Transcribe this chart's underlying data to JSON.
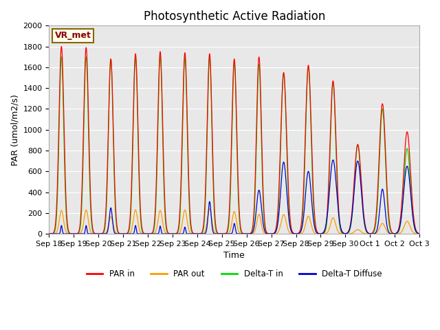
{
  "title": "Photosynthetic Active Radiation",
  "ylabel": "PAR (umol/m2/s)",
  "xlabel": "Time",
  "ylim": [
    0,
    2000
  ],
  "yticks": [
    0,
    200,
    400,
    600,
    800,
    1000,
    1200,
    1400,
    1600,
    1800,
    2000
  ],
  "background_color": "#e8e8e8",
  "annotation_text": "VR_met",
  "annotation_bg": "#ffffee",
  "annotation_border": "#886600",
  "colors": {
    "PAR_in": "#ff0000",
    "PAR_out": "#ff9900",
    "Delta_T_in": "#00dd00",
    "Delta_T_diffuse": "#0000cc"
  },
  "legend_labels": [
    "PAR in",
    "PAR out",
    "Delta-T in",
    "Delta-T Diffuse"
  ],
  "title_fontsize": 12,
  "axis_fontsize": 9,
  "tick_fontsize": 8,
  "days": 15,
  "par_in_peaks": [
    1800,
    1790,
    1680,
    1730,
    1750,
    1740,
    1730,
    1680,
    1700,
    1550,
    1620,
    1470,
    860,
    1250,
    980
  ],
  "par_out_peaks": [
    225,
    230,
    165,
    230,
    225,
    230,
    240,
    215,
    190,
    185,
    170,
    155,
    40,
    100,
    120
  ],
  "delta_t_in_peaks": [
    1700,
    1700,
    1680,
    1700,
    1710,
    1700,
    1700,
    1650,
    1630,
    1540,
    1600,
    1450,
    850,
    1200,
    820
  ],
  "delta_t_diff_peaks": [
    80,
    80,
    250,
    80,
    75,
    65,
    310,
    100,
    420,
    690,
    600,
    710,
    700,
    430,
    650
  ],
  "par_in_widths": [
    0.1,
    0.1,
    0.1,
    0.1,
    0.1,
    0.1,
    0.1,
    0.1,
    0.1,
    0.12,
    0.12,
    0.12,
    0.14,
    0.13,
    0.14
  ],
  "delta_t_diff_widths": [
    0.03,
    0.03,
    0.06,
    0.03,
    0.03,
    0.03,
    0.06,
    0.04,
    0.1,
    0.12,
    0.12,
    0.14,
    0.14,
    0.1,
    0.14
  ]
}
